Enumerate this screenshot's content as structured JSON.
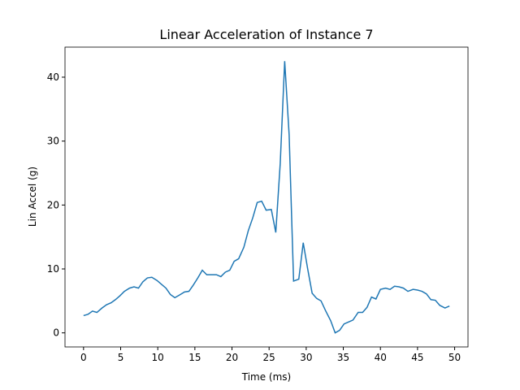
{
  "chart_data": {
    "type": "line",
    "title": "Linear Acceleration of Instance 7",
    "xlabel": "Time (ms)",
    "ylabel": "Lin Accel (g)",
    "x": [
      0,
      0.6,
      1.2,
      1.8,
      2.5,
      3.1,
      3.7,
      4.3,
      4.9,
      5.5,
      6.2,
      6.8,
      7.4,
      8.0,
      8.6,
      9.2,
      9.9,
      10.5,
      11.1,
      11.7,
      12.3,
      12.9,
      13.6,
      14.2,
      14.8,
      15.4,
      16.0,
      16.6,
      17.2,
      17.9,
      18.5,
      19.1,
      19.7,
      20.3,
      20.9,
      21.6,
      22.2,
      22.8,
      23.4,
      24.0,
      24.6,
      25.3,
      25.9,
      26.5,
      27.1,
      27.7,
      28.3,
      29.0,
      29.6,
      30.2,
      30.8,
      31.4,
      32.0,
      32.6,
      33.3,
      33.9,
      34.5,
      35.1,
      35.7,
      36.3,
      37.0,
      37.6,
      38.2,
      38.8,
      39.4,
      40.0,
      40.7,
      41.3,
      41.9,
      42.5,
      43.1,
      43.7,
      44.4,
      45.0,
      45.6,
      46.2,
      46.8,
      47.4,
      48.0,
      48.7,
      49.3
    ],
    "series": [
      {
        "color": "#1f77b4",
        "values": [
          2.7,
          2.9,
          3.4,
          3.2,
          3.9,
          4.4,
          4.7,
          5.2,
          5.8,
          6.5,
          7.0,
          7.2,
          7.0,
          8.0,
          8.6,
          8.7,
          8.2,
          7.6,
          7.0,
          6.0,
          5.5,
          5.9,
          6.4,
          6.5,
          7.5,
          8.6,
          9.8,
          9.1,
          9.1,
          9.1,
          8.8,
          9.5,
          9.8,
          11.2,
          11.6,
          13.4,
          16.0,
          18.0,
          20.4,
          20.6,
          19.2,
          19.3,
          15.7,
          26.5,
          42.5,
          31.0,
          8.1,
          8.4,
          14.1,
          10.0,
          6.2,
          5.4,
          5.0,
          3.5,
          1.9,
          0.0,
          0.4,
          1.4,
          1.7,
          2.0,
          3.2,
          3.2,
          4.0,
          5.6,
          5.3,
          6.8,
          7.0,
          6.8,
          7.3,
          7.2,
          7.0,
          6.5,
          6.8,
          6.7,
          6.5,
          6.1,
          5.2,
          5.1,
          4.3,
          3.9,
          4.2
        ]
      }
    ],
    "xlim": [
      -2.5,
      51.8
    ],
    "ylim": [
      -2.2,
      44.7
    ],
    "xticks": [
      0,
      5,
      10,
      15,
      20,
      25,
      30,
      35,
      40,
      45,
      50
    ],
    "yticks": [
      0,
      10,
      20,
      30,
      40
    ]
  }
}
